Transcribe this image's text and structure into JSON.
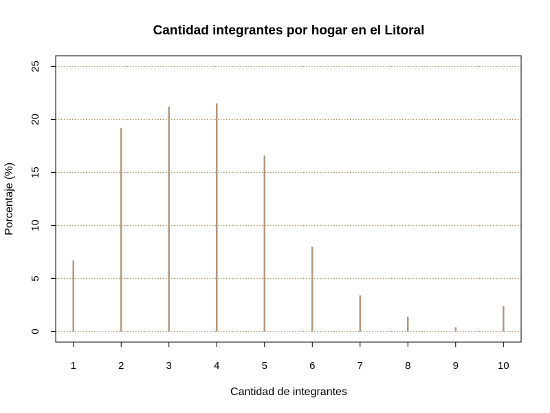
{
  "chart_data": {
    "type": "bar",
    "title": "Cantidad integrantes por hogar en el Litoral",
    "xlabel": "Cantidad de integrantes",
    "ylabel": "Porcentaje (%)",
    "categories": [
      1,
      2,
      3,
      4,
      5,
      6,
      7,
      8,
      9,
      10
    ],
    "values": [
      6.7,
      19.2,
      21.2,
      21.5,
      16.6,
      8.0,
      3.4,
      1.4,
      0.4,
      2.4
    ],
    "xlim": [
      0.63,
      10.37
    ],
    "ylim": [
      -1,
      26
    ],
    "yticks": [
      0,
      5,
      10,
      15,
      20,
      25
    ],
    "grid": true,
    "colors": {
      "bar": "#b5977b",
      "grid": "#b08a5e",
      "axis": "#000000"
    }
  }
}
